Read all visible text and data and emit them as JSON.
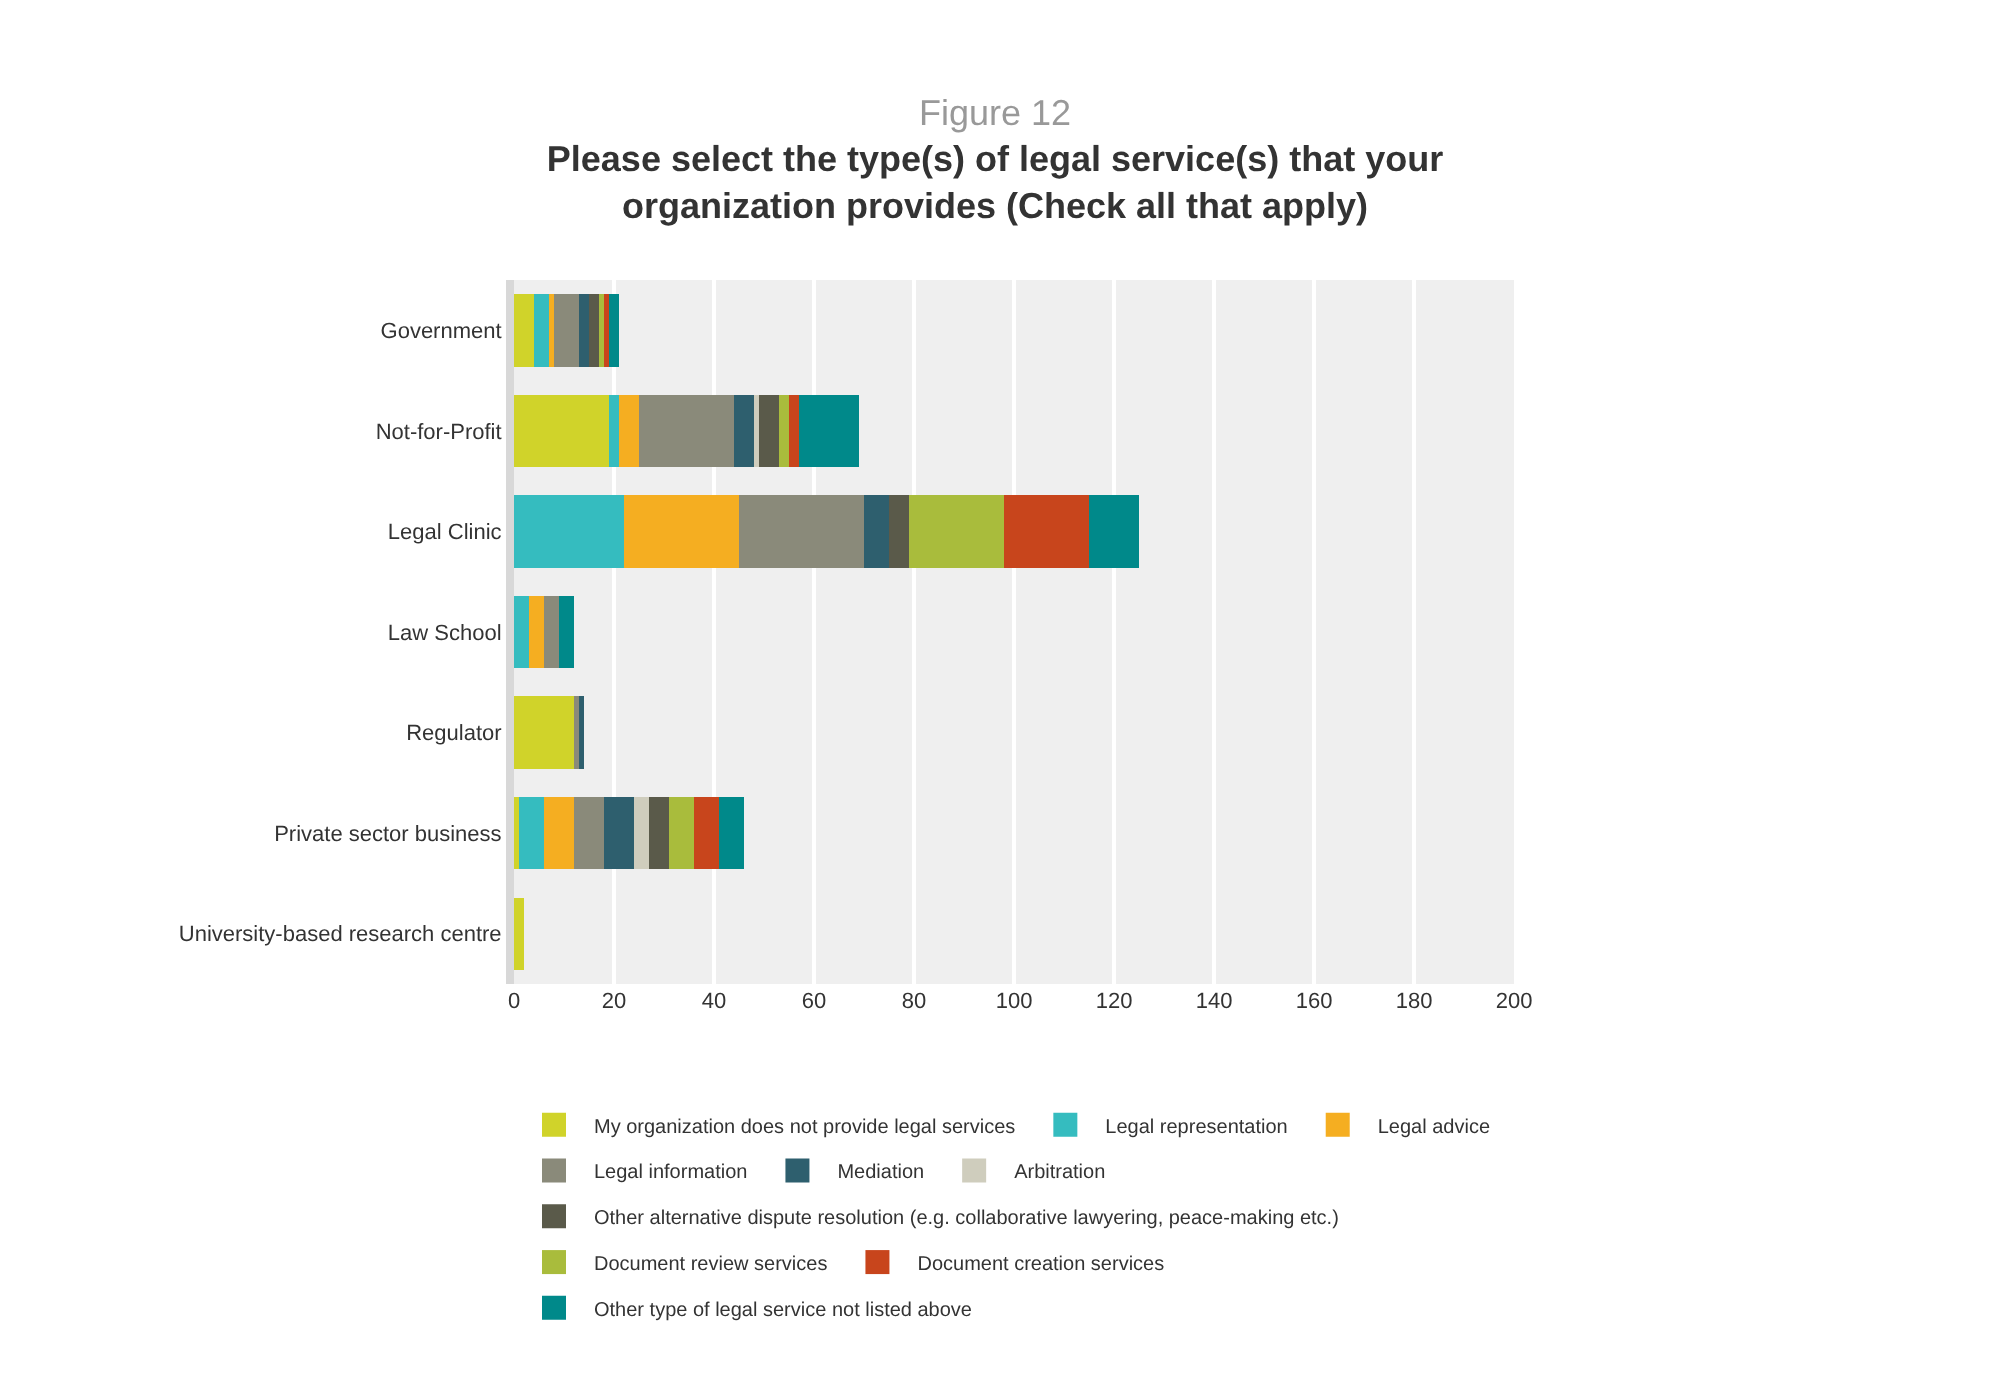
{
  "chart_data": {
    "type": "bar",
    "orientation": "horizontal",
    "stacked": true,
    "title": "Figure 12",
    "subtitle": "Please select the type(s) of legal service(s) that your organization provides (Check all that apply)",
    "categories": [
      "Government",
      "Not-for-Profit",
      "Legal Clinic",
      "Law School",
      "Regulator",
      "Private sector business",
      "University-based research centre"
    ],
    "series": [
      {
        "name": "My organization does not provide legal services",
        "color": "#d0d32a",
        "values": [
          4,
          19,
          0,
          0,
          12,
          1,
          2
        ]
      },
      {
        "name": "Legal representation",
        "color": "#35bcbf",
        "values": [
          3,
          2,
          22,
          3,
          0,
          5,
          0
        ]
      },
      {
        "name": "Legal advice",
        "color": "#f5ae21",
        "values": [
          1,
          4,
          23,
          3,
          0,
          6,
          0
        ]
      },
      {
        "name": "Legal information",
        "color": "#8a8a7a",
        "values": [
          5,
          19,
          25,
          3,
          1,
          6,
          0
        ]
      },
      {
        "name": "Mediation",
        "color": "#2e5f6e",
        "values": [
          2,
          4,
          5,
          0,
          1,
          6,
          0
        ]
      },
      {
        "name": "Arbitration",
        "color": "#cfcdbd",
        "values": [
          0,
          1,
          0,
          0,
          0,
          3,
          0
        ]
      },
      {
        "name": "Other alternative dispute resolution (e.g. collaborative lawyering, peace-making etc.)",
        "color": "#5a5a4a",
        "values": [
          2,
          4,
          4,
          0,
          0,
          4,
          0
        ]
      },
      {
        "name": "Document review services",
        "color": "#a9bc3c",
        "values": [
          1,
          2,
          19,
          0,
          0,
          5,
          0
        ]
      },
      {
        "name": "Document creation services",
        "color": "#c8451c",
        "values": [
          1,
          2,
          17,
          0,
          0,
          5,
          0
        ]
      },
      {
        "name": "Other type of legal service not listed above",
        "color": "#00898a",
        "values": [
          2,
          12,
          10,
          3,
          0,
          5,
          0
        ]
      }
    ],
    "xlim": [
      0,
      200
    ],
    "xticks": [
      0,
      20,
      40,
      60,
      80,
      100,
      120,
      140,
      160,
      180,
      200
    ],
    "grid": "x",
    "legend": "bottom"
  }
}
